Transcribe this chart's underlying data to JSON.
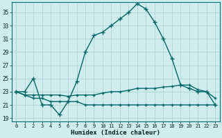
{
  "xlabel": "Humidex (Indice chaleur)",
  "ylabel": "",
  "background_color": "#d0ecec",
  "grid_color": "#b0d8d8",
  "line_color": "#006868",
  "xlim": [
    -0.5,
    23.5
  ],
  "ylim": [
    18.5,
    36.5
  ],
  "yticks": [
    19,
    21,
    23,
    25,
    27,
    29,
    31,
    33,
    35
  ],
  "xticks": [
    0,
    1,
    2,
    3,
    4,
    5,
    6,
    7,
    8,
    9,
    10,
    11,
    12,
    13,
    14,
    15,
    16,
    17,
    18,
    19,
    20,
    21,
    22,
    23
  ],
  "series": [
    {
      "x": [
        0,
        1,
        2,
        3,
        4,
        5,
        6,
        7,
        8,
        9,
        10,
        11,
        12,
        13,
        14,
        15,
        16,
        17,
        18,
        19,
        20,
        21,
        22,
        23
      ],
      "y": [
        23,
        23,
        25,
        21,
        21,
        19.5,
        21.5,
        24.5,
        29,
        31.5,
        32,
        33,
        34,
        35,
        36.3,
        35.5,
        33.5,
        31,
        28,
        24,
        23.5,
        23,
        23,
        21
      ],
      "marker": "+",
      "markersize": 4,
      "linewidth": 1.0
    },
    {
      "x": [
        0,
        1,
        2,
        3,
        4,
        5,
        6,
        7,
        8,
        9,
        10,
        11,
        12,
        13,
        14,
        15,
        16,
        17,
        18,
        19,
        20,
        21,
        22,
        23
      ],
      "y": [
        23,
        22.5,
        22.5,
        22.5,
        22.5,
        22.5,
        22.3,
        22.5,
        22.5,
        22.5,
        22.8,
        23,
        23,
        23.2,
        23.5,
        23.5,
        23.5,
        23.7,
        23.8,
        24,
        24,
        23.3,
        23,
        22
      ],
      "marker": "+",
      "markersize": 3,
      "linewidth": 1.0
    },
    {
      "x": [
        0,
        1,
        2,
        3,
        4,
        5,
        6,
        7,
        8,
        9,
        10,
        11,
        12,
        13,
        14,
        15,
        16,
        17,
        18,
        19,
        20,
        21,
        22,
        23
      ],
      "y": [
        23,
        22.5,
        22,
        22,
        21.5,
        21.5,
        21.5,
        21.5,
        21,
        21,
        21,
        21,
        21,
        21,
        21,
        21,
        21,
        21,
        21,
        21,
        21,
        21,
        21,
        21
      ],
      "marker": "+",
      "markersize": 3,
      "linewidth": 1.0
    }
  ]
}
